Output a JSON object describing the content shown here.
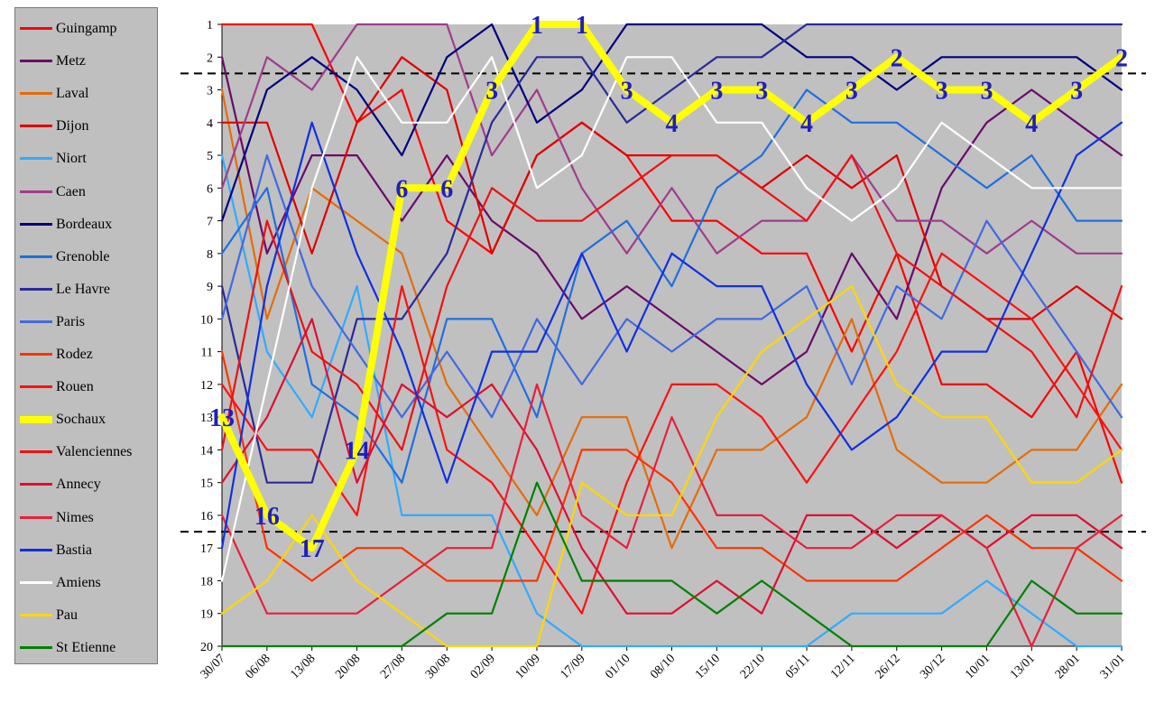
{
  "chart_data": {
    "type": "line",
    "title": "",
    "xlabel": "",
    "ylabel": "",
    "x": [
      "30/07",
      "06/08",
      "13/08",
      "20/08",
      "27/08",
      "30/08",
      "02/09",
      "10/09",
      "17/09",
      "01/10",
      "08/10",
      "15/10",
      "22/10",
      "05/11",
      "12/11",
      "26/12",
      "30/12",
      "10/01",
      "13/01",
      "28/01",
      "31/01"
    ],
    "y_ticks": [
      "1",
      "2",
      "3",
      "4",
      "5",
      "6",
      "7",
      "8",
      "9",
      "10",
      "11",
      "12",
      "13",
      "14",
      "15",
      "16",
      "17",
      "18",
      "19",
      "20"
    ],
    "ylim": [
      1,
      20
    ],
    "y_reversed": true,
    "grid": false,
    "legend_position": "left",
    "background_color": "#c0c0c0",
    "reference_lines": [
      2.5,
      16.5
    ],
    "series": [
      {
        "name": "Guingamp",
        "color": "#ff0000",
        "values": [
          1,
          1,
          1,
          4,
          3,
          7,
          8,
          5,
          4,
          5,
          7,
          7,
          8,
          8,
          11,
          8,
          12,
          12,
          13,
          11,
          15
        ]
      },
      {
        "name": "Metz",
        "color": "#6a0a6a",
        "values": [
          2,
          8,
          5,
          5,
          7,
          5,
          7,
          8,
          10,
          9,
          10,
          11,
          12,
          11,
          8,
          10,
          6,
          4,
          3,
          4,
          5
        ]
      },
      {
        "name": "Laval",
        "color": "#e46c0a",
        "values": [
          3,
          10,
          6,
          7,
          8,
          12,
          14,
          16,
          13,
          13,
          17,
          14,
          14,
          13,
          10,
          14,
          15,
          15,
          14,
          14,
          12
        ]
      },
      {
        "name": "Dijon",
        "color": "#e00000",
        "values": [
          4,
          4,
          8,
          4,
          2,
          3,
          8,
          5,
          4,
          5,
          5,
          5,
          6,
          5,
          6,
          5,
          9,
          10,
          10,
          9,
          10
        ]
      },
      {
        "name": "Niort",
        "color": "#33aaff",
        "values": [
          5,
          11,
          13,
          9,
          16,
          16,
          16,
          19,
          20,
          20,
          20,
          20,
          20,
          20,
          19,
          19,
          19,
          18,
          19,
          20,
          20
        ]
      },
      {
        "name": "Caen",
        "color": "#a03c8c",
        "values": [
          6,
          2,
          3,
          1,
          1,
          1,
          5,
          3,
          6,
          8,
          6,
          8,
          7,
          7,
          5,
          7,
          7,
          8,
          7,
          8,
          8
        ]
      },
      {
        "name": "Bordeaux",
        "color": "#000080",
        "values": [
          7,
          3,
          2,
          3,
          5,
          2,
          1,
          4,
          3,
          1,
          1,
          1,
          1,
          2,
          2,
          3,
          2,
          2,
          2,
          2,
          3
        ]
      },
      {
        "name": "Grenoble",
        "color": "#1f6fdf",
        "values": [
          8,
          6,
          12,
          13,
          15,
          10,
          10,
          13,
          8,
          7,
          9,
          6,
          5,
          3,
          4,
          4,
          5,
          6,
          5,
          7,
          7
        ]
      },
      {
        "name": "Le Havre",
        "color": "#2a2a9a",
        "values": [
          9,
          15,
          15,
          10,
          10,
          8,
          4,
          2,
          2,
          4,
          3,
          2,
          2,
          1,
          1,
          1,
          1,
          1,
          1,
          1,
          1
        ]
      },
      {
        "name": "Paris",
        "color": "#4169e1",
        "values": [
          10,
          5,
          9,
          11,
          13,
          11,
          13,
          10,
          12,
          10,
          11,
          10,
          10,
          9,
          12,
          9,
          10,
          7,
          9,
          11,
          13
        ]
      },
      {
        "name": "Rodez",
        "color": "#ff3300",
        "values": [
          11,
          17,
          18,
          17,
          17,
          18,
          18,
          18,
          14,
          14,
          15,
          17,
          17,
          18,
          18,
          18,
          17,
          16,
          17,
          17,
          18
        ]
      },
      {
        "name": "Rouen",
        "color": "#ff1010",
        "values": [
          12,
          14,
          14,
          16,
          9,
          14,
          15,
          17,
          19,
          15,
          12,
          12,
          13,
          15,
          13,
          11,
          8,
          9,
          10,
          12,
          14
        ]
      },
      {
        "name": "Sochaux",
        "color": "#ffff00",
        "values": [
          13,
          16,
          17,
          14,
          6,
          6,
          3,
          1,
          1,
          3,
          4,
          3,
          3,
          4,
          3,
          2,
          3,
          3,
          4,
          3,
          2
        ]
      },
      {
        "name": "Valenciennes",
        "color": "#ee1111",
        "values": [
          14,
          7,
          11,
          12,
          14,
          9,
          6,
          7,
          7,
          6,
          5,
          5,
          6,
          7,
          5,
          8,
          9,
          10,
          11,
          13,
          9
        ]
      },
      {
        "name": "Annecy",
        "color": "#dd1030",
        "values": [
          15,
          13,
          10,
          15,
          12,
          13,
          12,
          14,
          17,
          19,
          19,
          18,
          19,
          16,
          16,
          17,
          16,
          17,
          16,
          16,
          17
        ]
      },
      {
        "name": "Nimes",
        "color": "#e8203a",
        "values": [
          16,
          19,
          19,
          19,
          18,
          17,
          17,
          12,
          16,
          17,
          13,
          16,
          16,
          17,
          17,
          16,
          16,
          17,
          20,
          17,
          16
        ]
      },
      {
        "name": "Bastia",
        "color": "#1030e0",
        "values": [
          17,
          9,
          4,
          8,
          11,
          15,
          11,
          11,
          8,
          11,
          8,
          9,
          9,
          12,
          14,
          13,
          11,
          11,
          8,
          5,
          4
        ]
      },
      {
        "name": "Amiens",
        "color": "#ffffff",
        "values": [
          18,
          12,
          6,
          2,
          4,
          4,
          2,
          6,
          5,
          2,
          2,
          4,
          4,
          6,
          7,
          6,
          4,
          5,
          6,
          6,
          6
        ]
      },
      {
        "name": "Pau",
        "color": "#ffd700",
        "values": [
          19,
          18,
          16,
          18,
          19,
          20,
          20,
          20,
          15,
          16,
          16,
          13,
          11,
          10,
          9,
          12,
          13,
          13,
          15,
          15,
          14
        ]
      },
      {
        "name": "St Etienne",
        "color": "#008000",
        "values": [
          20,
          20,
          20,
          20,
          20,
          19,
          19,
          15,
          18,
          18,
          18,
          19,
          18,
          19,
          20,
          20,
          20,
          20,
          18,
          19,
          19
        ]
      }
    ],
    "highlight_series": "Sochaux",
    "annotations": [
      "13",
      "16",
      "17",
      "14",
      "6",
      "6",
      "3",
      "1",
      "1",
      "3",
      "4",
      "3",
      "3",
      "4",
      "3",
      "2",
      "3",
      "3",
      "4",
      "3",
      "2"
    ]
  }
}
